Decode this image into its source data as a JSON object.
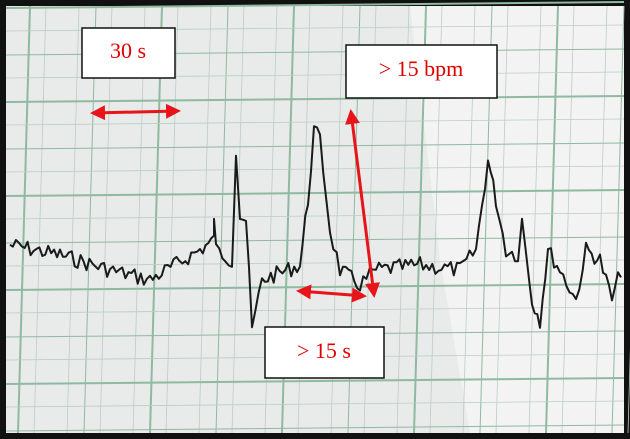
{
  "annotations": {
    "duration_short": "30 s",
    "amplitude": "> 15 bpm",
    "duration_long": "> 15 s"
  }
}
